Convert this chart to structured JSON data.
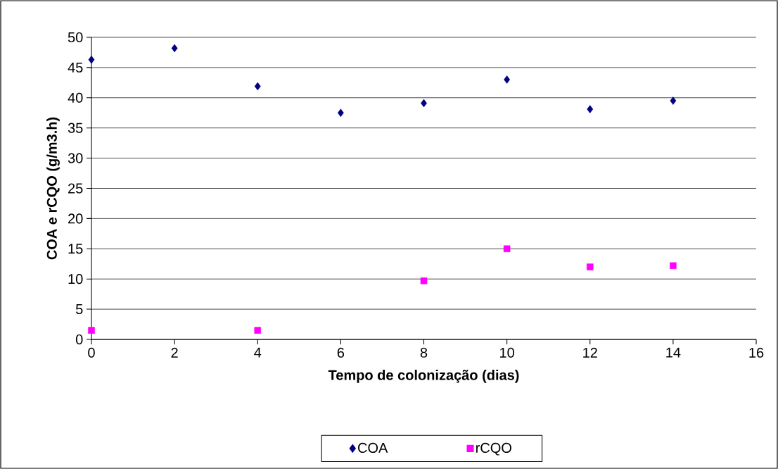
{
  "chart_data": {
    "type": "scatter",
    "xlabel": "Tempo de colonização (dias)",
    "ylabel": "COA e rCQO (g/m3.h)",
    "xlim": [
      0,
      16
    ],
    "xticks": [
      0,
      2,
      4,
      6,
      8,
      10,
      12,
      14,
      16
    ],
    "ylim": [
      0,
      50
    ],
    "yticks": [
      0,
      5,
      10,
      15,
      20,
      25,
      30,
      35,
      40,
      45,
      50
    ],
    "grid": "y",
    "legend": "bottom",
    "series": [
      {
        "name": "COA",
        "color": "#000080",
        "marker": "diamond",
        "x": [
          0,
          2,
          4,
          6,
          8,
          10,
          12,
          14
        ],
        "values": [
          46.3,
          48.2,
          41.9,
          37.5,
          39.1,
          43.0,
          38.1,
          39.5
        ]
      },
      {
        "name": "rCQO",
        "color": "#ff00ff",
        "marker": "square",
        "x": [
          0,
          4,
          8,
          10,
          12,
          14
        ],
        "values": [
          1.5,
          1.5,
          9.7,
          15.0,
          12.0,
          12.2
        ]
      }
    ]
  }
}
